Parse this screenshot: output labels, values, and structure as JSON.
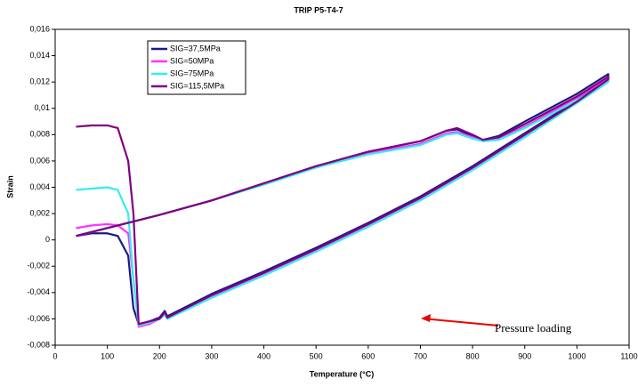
{
  "chart_data": {
    "type": "line",
    "title": "TRIP P5-T4-7",
    "xlabel": "Temperature (°C)",
    "ylabel": "Strain",
    "annotation": "Pressure loading",
    "x": [
      40,
      100,
      200,
      300,
      400,
      500,
      600,
      700,
      750,
      770,
      800,
      820,
      850,
      900,
      1000,
      1060,
      1060,
      1000,
      900,
      800,
      700,
      600,
      500,
      400,
      300,
      215,
      210,
      200,
      180,
      160,
      150,
      140,
      120,
      100,
      70,
      40
    ],
    "series": [
      {
        "name": "SIG=37,5MPa",
        "color": "#1a1a80",
        "values": [
          0.0003,
          0.0009,
          0.0019,
          0.003,
          0.0043,
          0.0056,
          0.0067,
          0.0075,
          0.0083,
          0.0084,
          0.0079,
          0.0076,
          0.0079,
          0.009,
          0.0111,
          0.0126,
          0.0123,
          0.0106,
          0.0081,
          0.0056,
          0.0033,
          0.0013,
          -0.0006,
          -0.0024,
          -0.0041,
          -0.0058,
          -0.0054,
          -0.0059,
          -0.0062,
          -0.0064,
          -0.0052,
          -0.0012,
          0.0003,
          0.0005,
          0.0005,
          0.0003
        ]
      },
      {
        "name": "SIG=50MPa",
        "color": "#ff33ff",
        "values": [
          0.0003,
          0.0009,
          0.0019,
          0.003,
          0.0043,
          0.0055,
          0.0066,
          0.0073,
          0.0081,
          0.0082,
          0.0078,
          0.0075,
          0.0077,
          0.0086,
          0.0108,
          0.0123,
          0.0121,
          0.0105,
          0.0079,
          0.0054,
          0.0031,
          0.0011,
          -0.0008,
          -0.0026,
          -0.0043,
          -0.006,
          -0.0057,
          -0.006,
          -0.0064,
          -0.0066,
          -0.003,
          0.0005,
          0.0011,
          0.0012,
          0.0011,
          0.0009
        ]
      },
      {
        "name": "SIG=75MPa",
        "color": "#33eeee",
        "values": [
          0.0003,
          0.0009,
          0.0019,
          0.003,
          0.0042,
          0.0055,
          0.0065,
          0.0072,
          0.008,
          0.0081,
          0.0077,
          0.0075,
          0.0076,
          0.0085,
          0.0106,
          0.0121,
          0.012,
          0.0104,
          0.0078,
          0.0053,
          0.003,
          0.001,
          -0.0009,
          -0.0027,
          -0.0044,
          -0.006,
          -0.0057,
          -0.006,
          -0.0063,
          -0.0065,
          -0.003,
          0.002,
          0.0038,
          0.004,
          0.0039,
          0.0038
        ]
      },
      {
        "name": "SIG=115,5MPa",
        "color": "#800080",
        "values": [
          0.0003,
          0.0009,
          0.0019,
          0.003,
          0.0043,
          0.0056,
          0.0067,
          0.0075,
          0.0083,
          0.0085,
          0.008,
          0.0076,
          0.0078,
          0.0088,
          0.0109,
          0.0124,
          0.0122,
          0.0105,
          0.008,
          0.0055,
          0.0032,
          0.0012,
          -0.0007,
          -0.0025,
          -0.0042,
          -0.0059,
          -0.0055,
          -0.006,
          -0.0062,
          -0.0064,
          0.002,
          0.006,
          0.0085,
          0.0087,
          0.0087,
          0.0086
        ]
      }
    ],
    "xlim": [
      0,
      1100
    ],
    "xticks": [
      0,
      100,
      200,
      300,
      400,
      500,
      600,
      700,
      800,
      900,
      1000,
      1100
    ],
    "ylim": [
      -0.008,
      0.016
    ],
    "yticks": [
      {
        "value": 0.016,
        "label": "0,016"
      },
      {
        "value": 0.014,
        "label": "0,014"
      },
      {
        "value": 0.012,
        "label": "0,012"
      },
      {
        "value": 0.01,
        "label": "0,01"
      },
      {
        "value": 0.008,
        "label": "0,008"
      },
      {
        "value": 0.006,
        "label": "0,006"
      },
      {
        "value": 0.004,
        "label": "0,004"
      },
      {
        "value": 0.002,
        "label": "0,002"
      },
      0,
      {
        "value": -0.002,
        "label": "-0,002"
      },
      {
        "value": -0.004,
        "label": "-0,004"
      },
      {
        "value": -0.006,
        "label": "-0,006"
      },
      {
        "value": -0.008,
        "label": "-0,008"
      }
    ],
    "legend": "upper left",
    "grid": false
  }
}
